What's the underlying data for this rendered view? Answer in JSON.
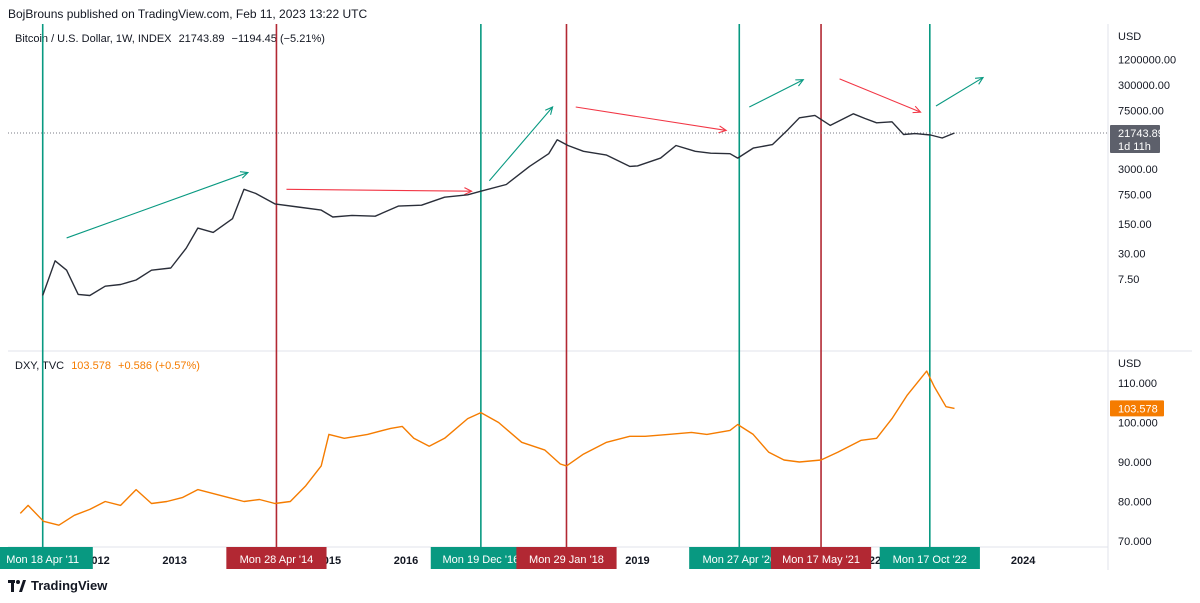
{
  "header": {
    "text": "BojBrouns published on TradingView.com, Feb 11, 2023 13:22 UTC"
  },
  "footer": {
    "brand": "TradingView"
  },
  "colors": {
    "btc_line": "#2a2e39",
    "dxy_line": "#f57c00",
    "green": "#089981",
    "red": "#b22833",
    "arrow_green": "#089981",
    "arrow_red": "#f23645",
    "grid": "#e0e3eb"
  },
  "chart_data": [
    {
      "type": "line",
      "pane": "top",
      "legend": {
        "symbol": "Bitcoin / U.S. Dollar, 1W, INDEX",
        "price": "21743.89",
        "change": "−1194.45 (−5.21%)"
      },
      "axis_unit": "USD",
      "y_scale": "log",
      "y_ticks": [
        1200000,
        300000,
        75000,
        3000,
        750,
        150,
        30,
        7.5
      ],
      "y_tick_labels": [
        "1200000.00",
        "300000.00",
        "75000.00",
        "3000.00",
        "750.00",
        "150.00",
        "30.00",
        "7.50"
      ],
      "price_tag": {
        "value": 21743.89,
        "label": "21743.89",
        "sub": "1d 11h"
      },
      "series": [
        {
          "x": [
            2011.29,
            2011.45,
            2011.6,
            2011.75,
            2011.9,
            2012.1,
            2012.3,
            2012.5,
            2012.7,
            2012.95,
            2013.15,
            2013.3,
            2013.5,
            2013.75,
            2013.9,
            2014.05,
            2014.3,
            2014.6,
            2014.9,
            2015.05,
            2015.3,
            2015.6,
            2015.9,
            2016.2,
            2016.5,
            2016.8,
            2016.97,
            2017.3,
            2017.6,
            2017.85,
            2017.96,
            2018.1,
            2018.3,
            2018.6,
            2018.9,
            2019.0,
            2019.3,
            2019.5,
            2019.75,
            2019.95,
            2020.2,
            2020.3,
            2020.5,
            2020.75,
            2020.95,
            2021.1,
            2021.3,
            2021.5,
            2021.8,
            2021.95,
            2022.1,
            2022.3,
            2022.45,
            2022.6,
            2022.8,
            2022.95,
            2023.11
          ],
          "values": [
            3,
            20,
            12,
            3.2,
            3,
            5,
            5.5,
            7,
            12,
            13.5,
            40,
            120,
            95,
            200,
            1000,
            800,
            450,
            380,
            320,
            220,
            240,
            230,
            400,
            420,
            650,
            740,
            900,
            1300,
            3500,
            7000,
            15000,
            11000,
            8000,
            6500,
            3500,
            3600,
            5500,
            11000,
            8000,
            7200,
            7000,
            5500,
            9500,
            11500,
            26000,
            50000,
            57000,
            33000,
            62000,
            48000,
            38000,
            40000,
            20000,
            21000,
            19500,
            16500,
            21743.89
          ]
        }
      ],
      "annotations": {
        "vertical_lines": [
          {
            "x": 2011.29,
            "color": "green",
            "label": "Mon 18 Apr '11"
          },
          {
            "x": 2014.32,
            "color": "red",
            "label": "Mon 28 Apr '14"
          },
          {
            "x": 2016.97,
            "color": "green",
            "label": "Mon 19 Dec '16"
          },
          {
            "x": 2018.08,
            "color": "red",
            "label": "Mon 29 Jan '18"
          },
          {
            "x": 2020.32,
            "color": "green",
            "label": "Mon 27 Apr '20"
          },
          {
            "x": 2021.38,
            "color": "red",
            "label": "Mon 17 May '21"
          },
          {
            "x": 2022.79,
            "color": "green",
            "label": "Mon 17 Oct '22"
          }
        ],
        "arrows": [
          {
            "x1": 2011.6,
            "y1": 70,
            "x2": 2013.95,
            "y2": 2500,
            "color": "green"
          },
          {
            "x1": 2014.45,
            "y1": 1000,
            "x2": 2016.85,
            "y2": 900,
            "color": "red"
          },
          {
            "x1": 2017.08,
            "y1": 1600,
            "x2": 2017.9,
            "y2": 90000,
            "color": "green"
          },
          {
            "x1": 2018.2,
            "y1": 90000,
            "x2": 2020.15,
            "y2": 25000,
            "color": "red"
          },
          {
            "x1": 2020.45,
            "y1": 90000,
            "x2": 2021.15,
            "y2": 400000,
            "color": "green"
          },
          {
            "x1": 2021.62,
            "y1": 420000,
            "x2": 2022.67,
            "y2": 68000,
            "color": "red"
          },
          {
            "x1": 2022.87,
            "y1": 95000,
            "x2": 2023.48,
            "y2": 450000,
            "color": "green"
          }
        ]
      }
    },
    {
      "type": "line",
      "pane": "bottom",
      "legend": {
        "symbol": "DXY, TVC",
        "price": "103.578",
        "change": "+0.586 (+0.57%)"
      },
      "axis_unit": "USD",
      "y_ticks": [
        110,
        100,
        90,
        80,
        70
      ],
      "y_tick_labels": [
        "110.000",
        "100.000",
        "90.000",
        "80.000",
        "70.000"
      ],
      "price_tag": {
        "value": 103.578,
        "label": "103.578"
      },
      "series": [
        {
          "x": [
            2011.0,
            2011.1,
            2011.3,
            2011.5,
            2011.7,
            2011.9,
            2012.1,
            2012.3,
            2012.5,
            2012.7,
            2012.9,
            2013.1,
            2013.3,
            2013.5,
            2013.7,
            2013.9,
            2014.1,
            2014.3,
            2014.5,
            2014.7,
            2014.9,
            2015.0,
            2015.2,
            2015.5,
            2015.8,
            2015.95,
            2016.1,
            2016.3,
            2016.5,
            2016.8,
            2016.97,
            2017.2,
            2017.5,
            2017.8,
            2018.0,
            2018.08,
            2018.3,
            2018.6,
            2018.9,
            2019.1,
            2019.4,
            2019.7,
            2019.9,
            2020.2,
            2020.3,
            2020.5,
            2020.7,
            2020.9,
            2021.1,
            2021.38,
            2021.6,
            2021.9,
            2022.1,
            2022.3,
            2022.5,
            2022.75,
            2022.85,
            2023.0,
            2023.11
          ],
          "values": [
            77,
            79,
            75,
            74,
            76.5,
            78,
            80,
            79,
            83,
            79.5,
            80,
            81,
            83,
            82,
            81,
            80,
            80.5,
            79.5,
            80,
            84,
            89,
            97,
            96,
            97,
            98.5,
            99,
            96,
            94,
            96,
            101,
            102.5,
            100,
            95,
            93,
            89.5,
            89,
            92,
            95,
            96.5,
            96.5,
            97,
            97.5,
            97,
            98,
            99.5,
            97,
            92.5,
            90.5,
            90,
            90.5,
            92.5,
            95.5,
            96,
            101,
            107,
            113,
            109,
            104,
            103.578
          ]
        }
      ]
    }
  ],
  "x_axis": {
    "ticks": [
      {
        "x": 2012.0,
        "label": "2012"
      },
      {
        "x": 2013.0,
        "label": "2013"
      },
      {
        "x": 2015.0,
        "label": "2015"
      },
      {
        "x": 2016.0,
        "label": "2016"
      },
      {
        "x": 2019.0,
        "label": "2019"
      },
      {
        "x": 2022.0,
        "label": "2022"
      },
      {
        "x": 2024.0,
        "label": "2024"
      }
    ],
    "range": [
      2010.84,
      2025.1
    ]
  }
}
